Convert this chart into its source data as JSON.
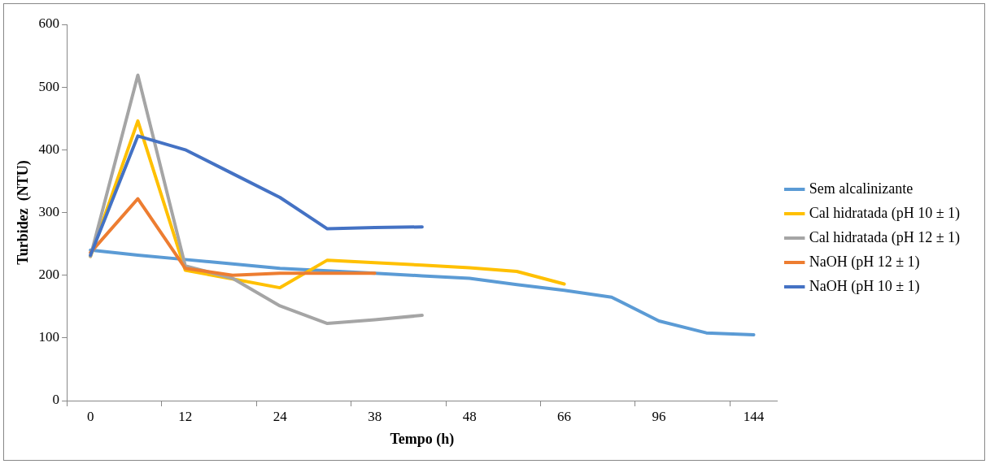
{
  "chart_data": {
    "type": "line",
    "xlabel": "Tempo (h)",
    "ylabel": "Turbidez  (NTU)",
    "categories": [
      "0",
      null,
      "12",
      null,
      "24",
      null,
      "38",
      null,
      "48",
      null,
      "66",
      null,
      "96",
      null,
      "144"
    ],
    "ylim": [
      0,
      600
    ],
    "yticks": [
      0,
      100,
      200,
      300,
      400,
      500,
      600
    ],
    "grid": false,
    "legend": "right",
    "marker": "none",
    "line_style": "solid",
    "series": [
      {
        "name": "Sem alcalinizante",
        "color": "#5b9bd5",
        "values": [
          240,
          232,
          225,
          218,
          211,
          207,
          203,
          199,
          195,
          185,
          176,
          165,
          127,
          108,
          105
        ]
      },
      {
        "name": "Cal hidratada (pH 10 ± 1)",
        "color": "#ffc000",
        "values": [
          230,
          446,
          208,
          194,
          180,
          224,
          220,
          216,
          212,
          206,
          186,
          null,
          null,
          null,
          null
        ]
      },
      {
        "name": "Cal hidratada (pH 12 ± 1)",
        "color": "#a5a5a5",
        "values": [
          230,
          519,
          215,
          195,
          151,
          123,
          129,
          136,
          null,
          null,
          null,
          null,
          null,
          null,
          null
        ]
      },
      {
        "name": "NaOH (pH 12 ± 1)",
        "color": "#ed7d31",
        "values": [
          236,
          322,
          211,
          200,
          203,
          203,
          203,
          null,
          null,
          null,
          null,
          null,
          null,
          null,
          null
        ]
      },
      {
        "name": "NaOH (pH 10 ± 1)",
        "color": "#4472c4",
        "values": [
          232,
          422,
          400,
          362,
          324,
          274,
          276,
          277,
          null,
          null,
          null,
          null,
          null,
          null,
          null
        ]
      }
    ]
  }
}
